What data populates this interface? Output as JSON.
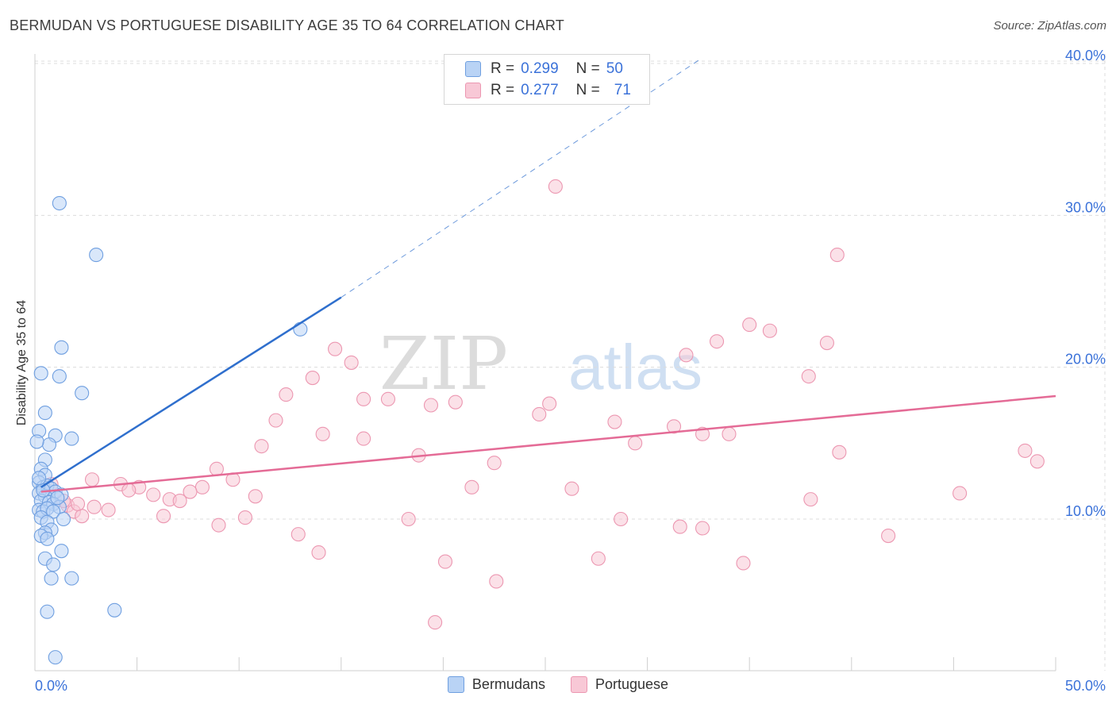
{
  "header": {
    "title": "BERMUDAN VS PORTUGUESE DISABILITY AGE 35 TO 64 CORRELATION CHART",
    "source": "Source: ZipAtlas.com"
  },
  "watermark": {
    "part1": "ZIP",
    "part2": "atlas"
  },
  "legend": {
    "rows": [
      {
        "r_label": "R =",
        "r_value": "0.299",
        "n_label": "N =",
        "n_value": "50"
      },
      {
        "r_label": "R =",
        "r_value": "0.277",
        "n_label": "N =",
        "n_value": "71"
      }
    ],
    "bottom": [
      "Bermudans",
      "Portuguese"
    ]
  },
  "colors": {
    "bermudan_fill": "#b9d3f5",
    "bermudan_stroke": "#6f9fe0",
    "bermudan_line": "#2f6fcd",
    "portuguese_fill": "#f8c8d6",
    "portuguese_stroke": "#ec97b1",
    "portuguese_line": "#e46b96",
    "tick_label": "#3b72d9",
    "grid": "#dcdcdc"
  },
  "chart_data": {
    "type": "scatter",
    "title": "BERMUDAN VS PORTUGUESE DISABILITY AGE 35 TO 64 CORRELATION CHART",
    "ylabel": "Disability Age 35 to 64",
    "xlim": [
      0,
      50
    ],
    "ylim": [
      0,
      41
    ],
    "x_tick_labels": [
      "0.0%",
      "50.0%"
    ],
    "y_ticks": [
      10,
      20,
      30,
      40
    ],
    "y_tick_labels": [
      "10.0%",
      "20.0%",
      "30.0%",
      "40.0%"
    ],
    "grid": true,
    "legend_position": "top-center",
    "series": [
      {
        "name": "Bermudans",
        "R": 0.299,
        "N": 50,
        "trend": {
          "x": [
            0.3,
            15
          ],
          "y": [
            12.1,
            24.6
          ],
          "dashed_to": {
            "x": 32.5,
            "y": 40.2
          }
        },
        "points": [
          [
            1.2,
            30.8
          ],
          [
            3.0,
            27.4
          ],
          [
            13.0,
            22.5
          ],
          [
            1.3,
            21.3
          ],
          [
            0.3,
            19.6
          ],
          [
            1.2,
            19.4
          ],
          [
            2.3,
            18.3
          ],
          [
            0.5,
            17.0
          ],
          [
            0.2,
            15.8
          ],
          [
            1.8,
            15.3
          ],
          [
            1.0,
            15.5
          ],
          [
            0.7,
            14.9
          ],
          [
            0.1,
            15.1
          ],
          [
            0.5,
            13.9
          ],
          [
            0.3,
            13.3
          ],
          [
            0.5,
            12.9
          ],
          [
            0.2,
            12.4
          ],
          [
            0.4,
            12.1
          ],
          [
            0.6,
            12.2
          ],
          [
            0.8,
            12.0
          ],
          [
            1.0,
            11.8
          ],
          [
            0.2,
            11.7
          ],
          [
            0.5,
            11.5
          ],
          [
            1.3,
            11.6
          ],
          [
            0.3,
            11.2
          ],
          [
            0.7,
            11.1
          ],
          [
            0.9,
            11.0
          ],
          [
            1.2,
            10.8
          ],
          [
            0.2,
            10.6
          ],
          [
            0.4,
            10.5
          ],
          [
            0.6,
            10.7
          ],
          [
            0.9,
            10.5
          ],
          [
            0.3,
            10.1
          ],
          [
            0.6,
            9.8
          ],
          [
            0.8,
            9.3
          ],
          [
            0.5,
            9.1
          ],
          [
            0.3,
            8.9
          ],
          [
            0.6,
            8.7
          ],
          [
            1.3,
            7.9
          ],
          [
            0.5,
            7.4
          ],
          [
            0.9,
            7.0
          ],
          [
            0.8,
            6.1
          ],
          [
            1.8,
            6.1
          ],
          [
            0.6,
            3.9
          ],
          [
            3.9,
            4.0
          ],
          [
            1.0,
            0.9
          ],
          [
            0.4,
            11.9
          ],
          [
            1.1,
            11.4
          ],
          [
            0.2,
            12.7
          ],
          [
            1.4,
            10.0
          ]
        ]
      },
      {
        "name": "Portuguese",
        "R": 0.277,
        "N": 71,
        "trend": {
          "x": [
            0.3,
            50
          ],
          "y": [
            11.8,
            18.1
          ]
        },
        "points": [
          [
            25.5,
            31.9
          ],
          [
            39.3,
            27.4
          ],
          [
            35.0,
            22.8
          ],
          [
            36.0,
            22.4
          ],
          [
            33.4,
            21.7
          ],
          [
            38.8,
            21.6
          ],
          [
            14.7,
            21.2
          ],
          [
            15.5,
            20.3
          ],
          [
            31.9,
            20.8
          ],
          [
            37.9,
            19.4
          ],
          [
            13.6,
            19.3
          ],
          [
            12.3,
            18.2
          ],
          [
            16.1,
            17.9
          ],
          [
            17.3,
            17.9
          ],
          [
            19.4,
            17.5
          ],
          [
            20.6,
            17.7
          ],
          [
            25.2,
            17.6
          ],
          [
            24.7,
            16.9
          ],
          [
            11.8,
            16.5
          ],
          [
            28.4,
            16.4
          ],
          [
            31.3,
            16.1
          ],
          [
            32.7,
            15.6
          ],
          [
            34.0,
            15.6
          ],
          [
            14.1,
            15.6
          ],
          [
            16.1,
            15.3
          ],
          [
            29.4,
            15.0
          ],
          [
            11.1,
            14.8
          ],
          [
            18.8,
            14.2
          ],
          [
            39.4,
            14.4
          ],
          [
            48.5,
            14.5
          ],
          [
            49.1,
            13.8
          ],
          [
            22.5,
            13.7
          ],
          [
            8.9,
            13.3
          ],
          [
            9.7,
            12.6
          ],
          [
            2.8,
            12.6
          ],
          [
            4.2,
            12.3
          ],
          [
            5.1,
            12.1
          ],
          [
            8.2,
            12.1
          ],
          [
            21.4,
            12.1
          ],
          [
            26.3,
            12.0
          ],
          [
            7.6,
            11.8
          ],
          [
            10.8,
            11.5
          ],
          [
            5.8,
            11.6
          ],
          [
            6.6,
            11.3
          ],
          [
            7.1,
            11.2
          ],
          [
            4.6,
            11.9
          ],
          [
            45.3,
            11.7
          ],
          [
            38.0,
            11.3
          ],
          [
            1.6,
            10.9
          ],
          [
            2.9,
            10.8
          ],
          [
            3.6,
            10.6
          ],
          [
            1.9,
            10.5
          ],
          [
            2.3,
            10.2
          ],
          [
            6.3,
            10.2
          ],
          [
            10.3,
            10.1
          ],
          [
            18.3,
            10.0
          ],
          [
            28.7,
            10.0
          ],
          [
            9.0,
            9.6
          ],
          [
            31.6,
            9.5
          ],
          [
            32.7,
            9.4
          ],
          [
            12.9,
            9.0
          ],
          [
            41.8,
            8.9
          ],
          [
            13.9,
            7.8
          ],
          [
            27.6,
            7.4
          ],
          [
            20.1,
            7.2
          ],
          [
            34.7,
            7.1
          ],
          [
            22.6,
            5.9
          ],
          [
            19.6,
            3.2
          ],
          [
            0.8,
            12.3
          ],
          [
            1.4,
            11.2
          ],
          [
            2.1,
            11.0
          ]
        ]
      }
    ]
  }
}
